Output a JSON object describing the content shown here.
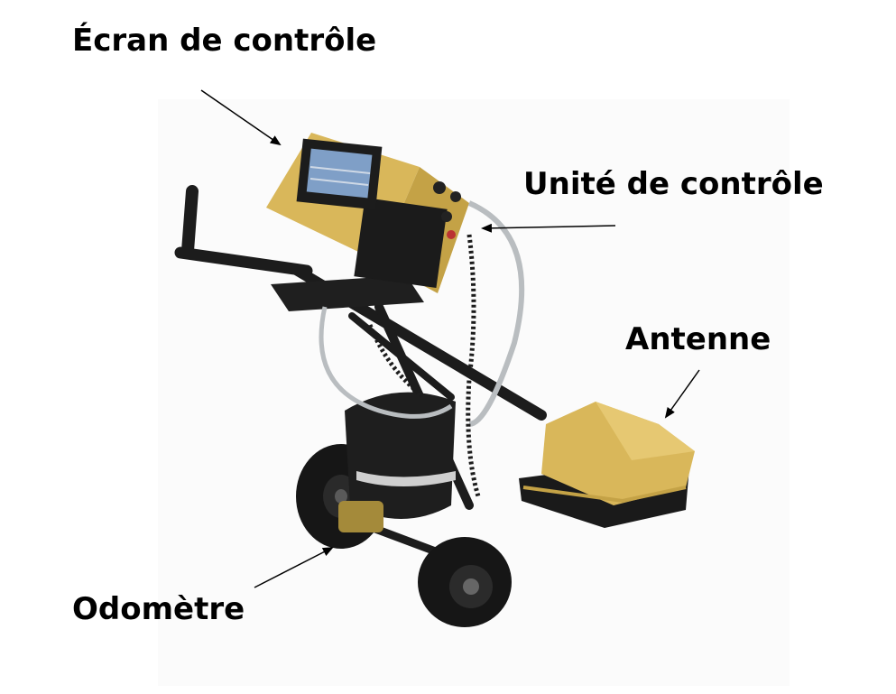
{
  "labels": {
    "ecran": "Écran de contrôle",
    "unite": "Unité de contrôle",
    "antenne": "Antenne",
    "odometre": "Odomètre"
  },
  "colors": {
    "equipment_yellow": "#d9b75a",
    "equipment_black": "#1c1c1c",
    "screen_blue": "#7f9fc7",
    "cable_grey": "#b9bdc0"
  }
}
